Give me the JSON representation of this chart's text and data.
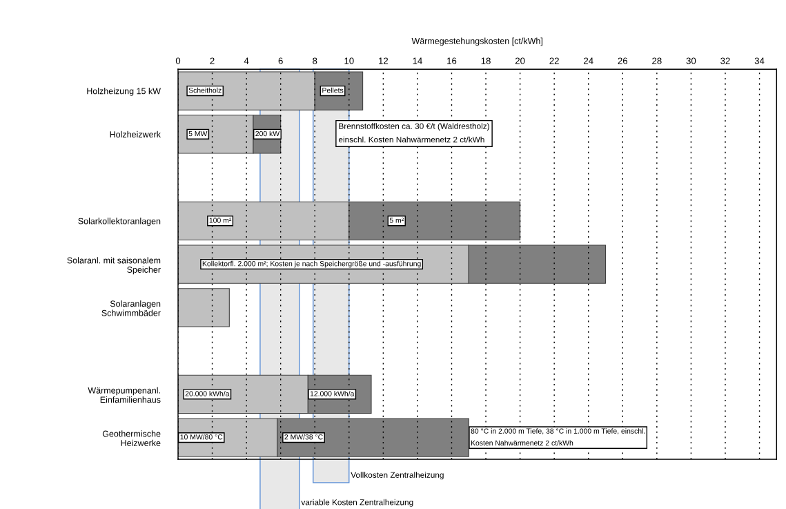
{
  "chart_data": {
    "type": "bar",
    "orientation": "horizontal",
    "stacked": true,
    "xlabel": "Wärmegestehungskosten [ct/kWh]",
    "categories": [
      "Holzheizung 15 kW",
      "Holzheizwerk",
      null,
      "Solarkollektoranlagen",
      "Solaranl. mit saisonalem\nSpeicher",
      "Solaranlagen\nSchwimmbäder",
      null,
      "Wärmepumpenanl.\nEinfamilienhaus",
      "Geothermische\nHeizwerke"
    ],
    "series": [
      {
        "color": "#c0c0c0",
        "values": [
          8,
          4.4,
          null,
          10,
          17,
          3,
          null,
          7.6,
          5.8
        ]
      },
      {
        "color": "#808080",
        "values": [
          2.8,
          1.6,
          null,
          10,
          8,
          null,
          null,
          3.7,
          11.2
        ]
      }
    ],
    "xlim": [
      0,
      35
    ],
    "xticks": [
      0,
      2,
      4,
      6,
      8,
      10,
      12,
      14,
      16,
      18,
      20,
      22,
      24,
      26,
      28,
      30,
      32,
      34
    ],
    "grid": "x",
    "legend": false,
    "bands": [
      {
        "axis": "x",
        "from": 4.8,
        "to": 7.1,
        "label": "variable Kosten Zentralheizung",
        "color": "#e8e8e8"
      },
      {
        "axis": "x",
        "from": 7.9,
        "to": 10.0,
        "label": "Vollkosten Zentralheizung",
        "color": "#e8e8e8"
      }
    ],
    "annotations": [
      {
        "text": "Scheitholz",
        "x": 0.5,
        "y": "Holzheizung 15 kW"
      },
      {
        "text": "Pellets",
        "x": 8.3,
        "y": "Holzheizung 15 kW"
      },
      {
        "text": "5 MW",
        "x": 0.5,
        "y": "Holzheizwerk"
      },
      {
        "text": "200 kW",
        "x": 4.4,
        "y": "Holzheizwerk"
      },
      "Brennstoffkosten ca. 30 €/t (Waldrestholz)\neinschl. Kosten Nahwärmenetz 2 ct/kWh",
      {
        "text": "100 m²",
        "x": 1.7,
        "y": "Solarkollektoranlagen"
      },
      {
        "text": "5 m²",
        "x": 12.25,
        "y": "Solarkollektoranlagen"
      },
      {
        "text": "Kollektorfl. 2.000 m²; Kosten je nach Speichergröße und -ausführung",
        "x": 1.3,
        "y": "Solaranl. mit saisonalem\nSpeicher"
      },
      {
        "text": "20.000 kWh/a",
        "x": 0.3,
        "y": "Wärmepumpenanl.\nEinfamilienhaus"
      },
      {
        "text": "12.000 kWh/a",
        "x": 7.6,
        "y": "Wärmepumpenanl.\nEinfamilienhaus"
      },
      {
        "text": "10 MW/80 °C",
        "x": 0,
        "y": "Geothermische\nHeizwerke"
      },
      {
        "text": "2 MW/38 °C",
        "x": 6.1,
        "y": "Geothermische\nHeizwerke"
      },
      {
        "text": "80 °C in 2.000 m Tiefe, 38 °C in 1.000 m Tiefe, einschl.\nKosten Nahwärmenetz 2 ct/kWh",
        "x": 17,
        "y": "Geothermische\nHeizwerke"
      }
    ]
  }
}
